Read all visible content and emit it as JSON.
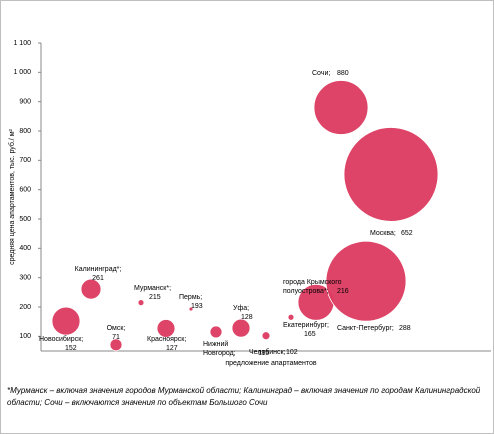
{
  "chart_data": {
    "type": "scatter",
    "y_label": "средняя цена апартаментов, тыс. руб./ м²",
    "x_label": "предложение апартаментов",
    "footnote": "*Мурманск – включая значения городов Мурманской области; Калининград – включая значения по городам Калининградской области; Сочи – включаются значения по объектам Большого Сочи",
    "color": "#dc3a5f",
    "categories": [
      "Новосибирск;",
      "Калининград*;",
      "Омск;",
      "Мурманск*;",
      "Красноярск;",
      "Пермь;",
      [
        "Нижний",
        "Новгород;"
      ],
      "Уфа;",
      "Челябинск;",
      "Екатеринбург;",
      [
        "города Крымского",
        "полуострова*;"
      ],
      "Сочи;",
      "Москва;",
      "Санкт-Петербург;"
    ],
    "x": [
      0.5,
      1,
      1.5,
      2,
      2.5,
      3,
      3.5,
      4,
      4.5,
      5,
      5.5,
      6,
      7,
      6.5
    ],
    "values": [
      152,
      261,
      71,
      215,
      127,
      193,
      115,
      128,
      102,
      165,
      216,
      880,
      652,
      288
    ],
    "sizes": [
      196,
      100,
      36,
      9,
      81,
      4,
      36,
      81,
      16,
      9,
      324,
      729,
      2209,
      1600
    ],
    "xlim": [
      0,
      9
    ],
    "ylim": [
      50,
      1100
    ],
    "yticks": [
      {
        "value": 1100,
        "label": "1 100"
      },
      {
        "value": 1000,
        "label": "1 000"
      },
      900,
      800,
      700,
      600,
      500,
      400,
      300,
      200,
      100
    ]
  }
}
